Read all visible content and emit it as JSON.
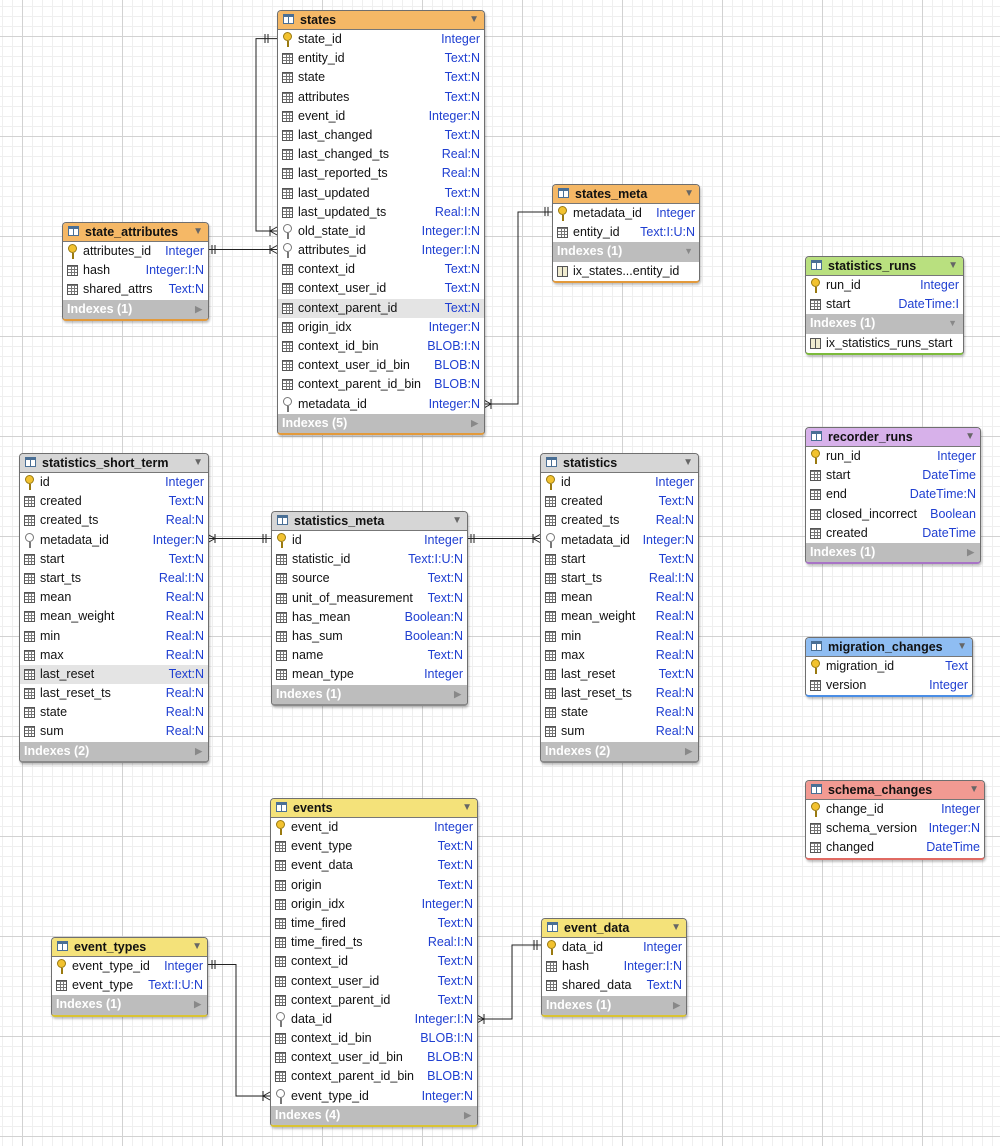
{
  "tables": {
    "states": {
      "name": "states",
      "columns": [
        {
          "name": "state_id",
          "type": "Integer"
        },
        {
          "name": "entity_id",
          "type": "Text:N"
        },
        {
          "name": "state",
          "type": "Text:N"
        },
        {
          "name": "attributes",
          "type": "Text:N"
        },
        {
          "name": "event_id",
          "type": "Integer:N"
        },
        {
          "name": "last_changed",
          "type": "Text:N"
        },
        {
          "name": "last_changed_ts",
          "type": "Real:N"
        },
        {
          "name": "last_reported_ts",
          "type": "Real:N"
        },
        {
          "name": "last_updated",
          "type": "Text:N"
        },
        {
          "name": "last_updated_ts",
          "type": "Real:I:N"
        },
        {
          "name": "old_state_id",
          "type": "Integer:I:N"
        },
        {
          "name": "attributes_id",
          "type": "Integer:I:N"
        },
        {
          "name": "context_id",
          "type": "Text:N"
        },
        {
          "name": "context_user_id",
          "type": "Text:N"
        },
        {
          "name": "context_parent_id",
          "type": "Text:N"
        },
        {
          "name": "origin_idx",
          "type": "Integer:N"
        },
        {
          "name": "context_id_bin",
          "type": "BLOB:I:N"
        },
        {
          "name": "context_user_id_bin",
          "type": "BLOB:N"
        },
        {
          "name": "context_parent_id_bin",
          "type": "BLOB:N"
        },
        {
          "name": "metadata_id",
          "type": "Integer:N"
        }
      ],
      "indexes": "Indexes (5)"
    },
    "states_meta": {
      "name": "states_meta",
      "columns": [
        {
          "name": "metadata_id",
          "type": "Integer"
        },
        {
          "name": "entity_id",
          "type": "Text:I:U:N"
        }
      ],
      "indexes": "Indexes (1)",
      "index_items": [
        "ix_states...entity_id"
      ]
    },
    "state_attributes": {
      "name": "state_attributes",
      "columns": [
        {
          "name": "attributes_id",
          "type": "Integer"
        },
        {
          "name": "hash",
          "type": "Integer:I:N"
        },
        {
          "name": "shared_attrs",
          "type": "Text:N"
        }
      ],
      "indexes": "Indexes (1)"
    },
    "statistics_runs": {
      "name": "statistics_runs",
      "columns": [
        {
          "name": "run_id",
          "type": "Integer"
        },
        {
          "name": "start",
          "type": "DateTime:I"
        }
      ],
      "indexes": "Indexes (1)",
      "index_items": [
        "ix_statistics_runs_start"
      ]
    },
    "recorder_runs": {
      "name": "recorder_runs",
      "columns": [
        {
          "name": "run_id",
          "type": "Integer"
        },
        {
          "name": "start",
          "type": "DateTime"
        },
        {
          "name": "end",
          "type": "DateTime:N"
        },
        {
          "name": "closed_incorrect",
          "type": "Boolean"
        },
        {
          "name": "created",
          "type": "DateTime"
        }
      ],
      "indexes": "Indexes (1)"
    },
    "migration_changes": {
      "name": "migration_changes",
      "columns": [
        {
          "name": "migration_id",
          "type": "Text"
        },
        {
          "name": "version",
          "type": "Integer"
        }
      ]
    },
    "schema_changes": {
      "name": "schema_changes",
      "columns": [
        {
          "name": "change_id",
          "type": "Integer"
        },
        {
          "name": "schema_version",
          "type": "Integer:N"
        },
        {
          "name": "changed",
          "type": "DateTime"
        }
      ]
    },
    "statistics_short_term": {
      "name": "statistics_short_term",
      "columns": [
        {
          "name": "id",
          "type": "Integer"
        },
        {
          "name": "created",
          "type": "Text:N"
        },
        {
          "name": "created_ts",
          "type": "Real:N"
        },
        {
          "name": "metadata_id",
          "type": "Integer:N"
        },
        {
          "name": "start",
          "type": "Text:N"
        },
        {
          "name": "start_ts",
          "type": "Real:I:N"
        },
        {
          "name": "mean",
          "type": "Real:N"
        },
        {
          "name": "mean_weight",
          "type": "Real:N"
        },
        {
          "name": "min",
          "type": "Real:N"
        },
        {
          "name": "max",
          "type": "Real:N"
        },
        {
          "name": "last_reset",
          "type": "Text:N"
        },
        {
          "name": "last_reset_ts",
          "type": "Real:N"
        },
        {
          "name": "state",
          "type": "Real:N"
        },
        {
          "name": "sum",
          "type": "Real:N"
        }
      ],
      "indexes": "Indexes (2)"
    },
    "statistics_meta": {
      "name": "statistics_meta",
      "columns": [
        {
          "name": "id",
          "type": "Integer"
        },
        {
          "name": "statistic_id",
          "type": "Text:I:U:N"
        },
        {
          "name": "source",
          "type": "Text:N"
        },
        {
          "name": "unit_of_measurement",
          "type": "Text:N"
        },
        {
          "name": "has_mean",
          "type": "Boolean:N"
        },
        {
          "name": "has_sum",
          "type": "Boolean:N"
        },
        {
          "name": "name",
          "type": "Text:N"
        },
        {
          "name": "mean_type",
          "type": "Integer"
        }
      ],
      "indexes": "Indexes (1)"
    },
    "statistics": {
      "name": "statistics",
      "columns": [
        {
          "name": "id",
          "type": "Integer"
        },
        {
          "name": "created",
          "type": "Text:N"
        },
        {
          "name": "created_ts",
          "type": "Real:N"
        },
        {
          "name": "metadata_id",
          "type": "Integer:N"
        },
        {
          "name": "start",
          "type": "Text:N"
        },
        {
          "name": "start_ts",
          "type": "Real:I:N"
        },
        {
          "name": "mean",
          "type": "Real:N"
        },
        {
          "name": "mean_weight",
          "type": "Real:N"
        },
        {
          "name": "min",
          "type": "Real:N"
        },
        {
          "name": "max",
          "type": "Real:N"
        },
        {
          "name": "last_reset",
          "type": "Text:N"
        },
        {
          "name": "last_reset_ts",
          "type": "Real:N"
        },
        {
          "name": "state",
          "type": "Real:N"
        },
        {
          "name": "sum",
          "type": "Real:N"
        }
      ],
      "indexes": "Indexes (2)"
    },
    "events": {
      "name": "events",
      "columns": [
        {
          "name": "event_id",
          "type": "Integer"
        },
        {
          "name": "event_type",
          "type": "Text:N"
        },
        {
          "name": "event_data",
          "type": "Text:N"
        },
        {
          "name": "origin",
          "type": "Text:N"
        },
        {
          "name": "origin_idx",
          "type": "Integer:N"
        },
        {
          "name": "time_fired",
          "type": "Text:N"
        },
        {
          "name": "time_fired_ts",
          "type": "Real:I:N"
        },
        {
          "name": "context_id",
          "type": "Text:N"
        },
        {
          "name": "context_user_id",
          "type": "Text:N"
        },
        {
          "name": "context_parent_id",
          "type": "Text:N"
        },
        {
          "name": "data_id",
          "type": "Integer:I:N"
        },
        {
          "name": "context_id_bin",
          "type": "BLOB:I:N"
        },
        {
          "name": "context_user_id_bin",
          "type": "BLOB:N"
        },
        {
          "name": "context_parent_id_bin",
          "type": "BLOB:N"
        },
        {
          "name": "event_type_id",
          "type": "Integer:N"
        }
      ],
      "indexes": "Indexes (4)"
    },
    "event_types": {
      "name": "event_types",
      "columns": [
        {
          "name": "event_type_id",
          "type": "Integer"
        },
        {
          "name": "event_type",
          "type": "Text:I:U:N"
        }
      ],
      "indexes": "Indexes (1)"
    },
    "event_data": {
      "name": "event_data",
      "columns": [
        {
          "name": "data_id",
          "type": "Integer"
        },
        {
          "name": "hash",
          "type": "Integer:I:N"
        },
        {
          "name": "shared_data",
          "type": "Text:N"
        }
      ],
      "indexes": "Indexes (1)"
    }
  }
}
